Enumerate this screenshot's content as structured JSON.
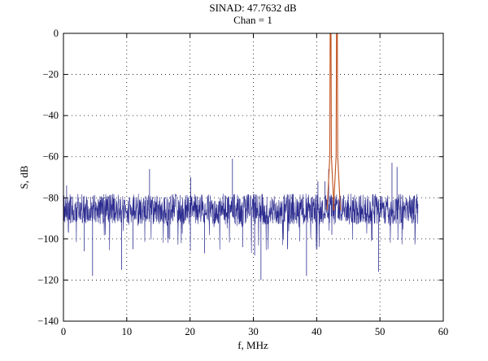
{
  "chart_data": {
    "type": "line",
    "title": "SINAD: 47.7632 dB",
    "subtitle": "Chan = 1",
    "xlabel": "f, MHz",
    "ylabel": "S, dB",
    "xlim": [
      0,
      60
    ],
    "ylim": [
      -140,
      0
    ],
    "x_ticks": [
      0,
      10,
      20,
      30,
      40,
      50,
      60
    ],
    "y_ticks": [
      0,
      -20,
      -40,
      -60,
      -80,
      -100,
      -120,
      -140
    ],
    "grid": true,
    "grid_style": "dotted",
    "noise_floor": {
      "x_range": [
        0,
        56
      ],
      "center_db": -86,
      "typical_band_db": [
        -93,
        -78
      ],
      "deep_dips_db": -120,
      "top_spikes_db": -62
    },
    "series": [
      {
        "color": "#2b2b8f",
        "kind": "noise spectrum",
        "points": [
          [
            0.5,
            -74
          ],
          [
            3.3,
            -106
          ],
          [
            4.6,
            -118
          ],
          [
            9.2,
            -115
          ],
          [
            11.0,
            -105
          ],
          [
            13.6,
            -66
          ],
          [
            16.8,
            -100
          ],
          [
            20.1,
            -70
          ],
          [
            22.3,
            -107
          ],
          [
            26.7,
            -61
          ],
          [
            28.3,
            -104
          ],
          [
            30.2,
            -108
          ],
          [
            31.2,
            -120
          ],
          [
            35.4,
            -105
          ],
          [
            38.4,
            -118
          ],
          [
            40.2,
            -72
          ],
          [
            41.3,
            -72
          ],
          [
            41.9,
            -66
          ],
          [
            42.4,
            -98
          ],
          [
            42.6,
            -88
          ],
          [
            43.5,
            -90
          ],
          [
            46.0,
            -92
          ],
          [
            49.8,
            -116
          ],
          [
            51.9,
            -63
          ],
          [
            52.7,
            -65
          ],
          [
            55.9,
            -86
          ]
        ]
      },
      {
        "color": "#c0501c",
        "kind": "tones",
        "tones": [
          {
            "x": 42.2,
            "peak_db": 0
          },
          {
            "x": 43.2,
            "peak_db": 0
          }
        ]
      }
    ]
  }
}
